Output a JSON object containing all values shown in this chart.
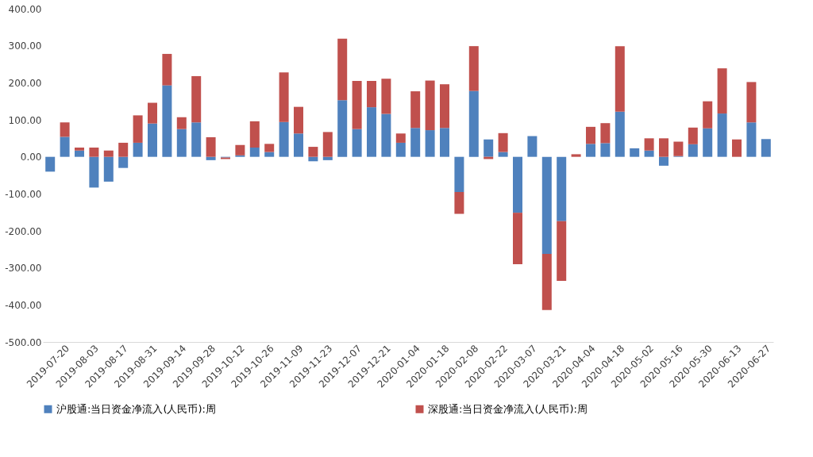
{
  "chart_data": {
    "type": "bar",
    "stacked": true,
    "legend": "bottom",
    "grid": false,
    "categories": [
      null,
      "2019-07-20",
      null,
      "2019-08-03",
      null,
      "2019-08-17",
      null,
      "2019-08-31",
      null,
      "2019-09-14",
      null,
      "2019-09-28",
      null,
      "2019-10-12",
      null,
      "2019-10-26",
      null,
      "2019-11-09",
      null,
      "2019-11-23",
      null,
      "2019-12-07",
      null,
      "2019-12-21",
      null,
      "2020-01-04",
      null,
      "2020-01-18",
      null,
      "2020-02-08",
      null,
      "2020-02-22",
      null,
      "2020-03-07",
      null,
      "2020-03-21",
      null,
      "2020-04-04",
      null,
      "2020-04-18",
      null,
      "2020-05-02",
      null,
      "2020-05-16",
      null,
      "2020-05-30",
      null,
      "2020-06-13",
      null,
      "2020-06-27"
    ],
    "series": [
      {
        "name": "沪股通:当日资金净流入(人民币):周",
        "color": "#4f81bd",
        "values": [
          -40,
          54,
          17,
          -83,
          -67,
          -30,
          38,
          90,
          193,
          75,
          93,
          -9,
          -2,
          4,
          25,
          13,
          94,
          63,
          -12,
          -9,
          153,
          75,
          134,
          116,
          38,
          78,
          72,
          78,
          -95,
          178,
          47,
          13,
          -151,
          56,
          -262,
          -174,
          0,
          35,
          37,
          122,
          23,
          17,
          -24,
          2,
          34,
          77,
          117,
          0,
          93,
          48
        ]
      },
      {
        "name": "深股通:当日资金净流入(人民币):周",
        "color": "#c0504d",
        "values": [
          0,
          39,
          8,
          25,
          17,
          38,
          74,
          56,
          85,
          32,
          125,
          53,
          -4,
          28,
          71,
          22,
          134,
          72,
          27,
          67,
          166,
          130,
          71,
          95,
          25,
          99,
          134,
          118,
          -59,
          121,
          -6,
          51,
          -139,
          0,
          -152,
          -161,
          7,
          46,
          54,
          177,
          0,
          33,
          50,
          39,
          45,
          73,
          122,
          47,
          109,
          0
        ]
      }
    ],
    "ylim": [
      -500,
      400
    ],
    "yticks": [
      {
        "value": -500,
        "label": "-500.00"
      },
      {
        "value": -400,
        "label": "-400.00"
      },
      {
        "value": -300,
        "label": "-300.00"
      },
      {
        "value": -200,
        "label": "-200.00"
      },
      {
        "value": -100,
        "label": "-100.00"
      },
      {
        "value": 0,
        "label": "0.00"
      },
      {
        "value": 100,
        "label": "100.00"
      },
      {
        "value": 200,
        "label": "200.00"
      },
      {
        "value": 300,
        "label": "300.00"
      },
      {
        "value": 400,
        "label": "400.00"
      }
    ]
  }
}
